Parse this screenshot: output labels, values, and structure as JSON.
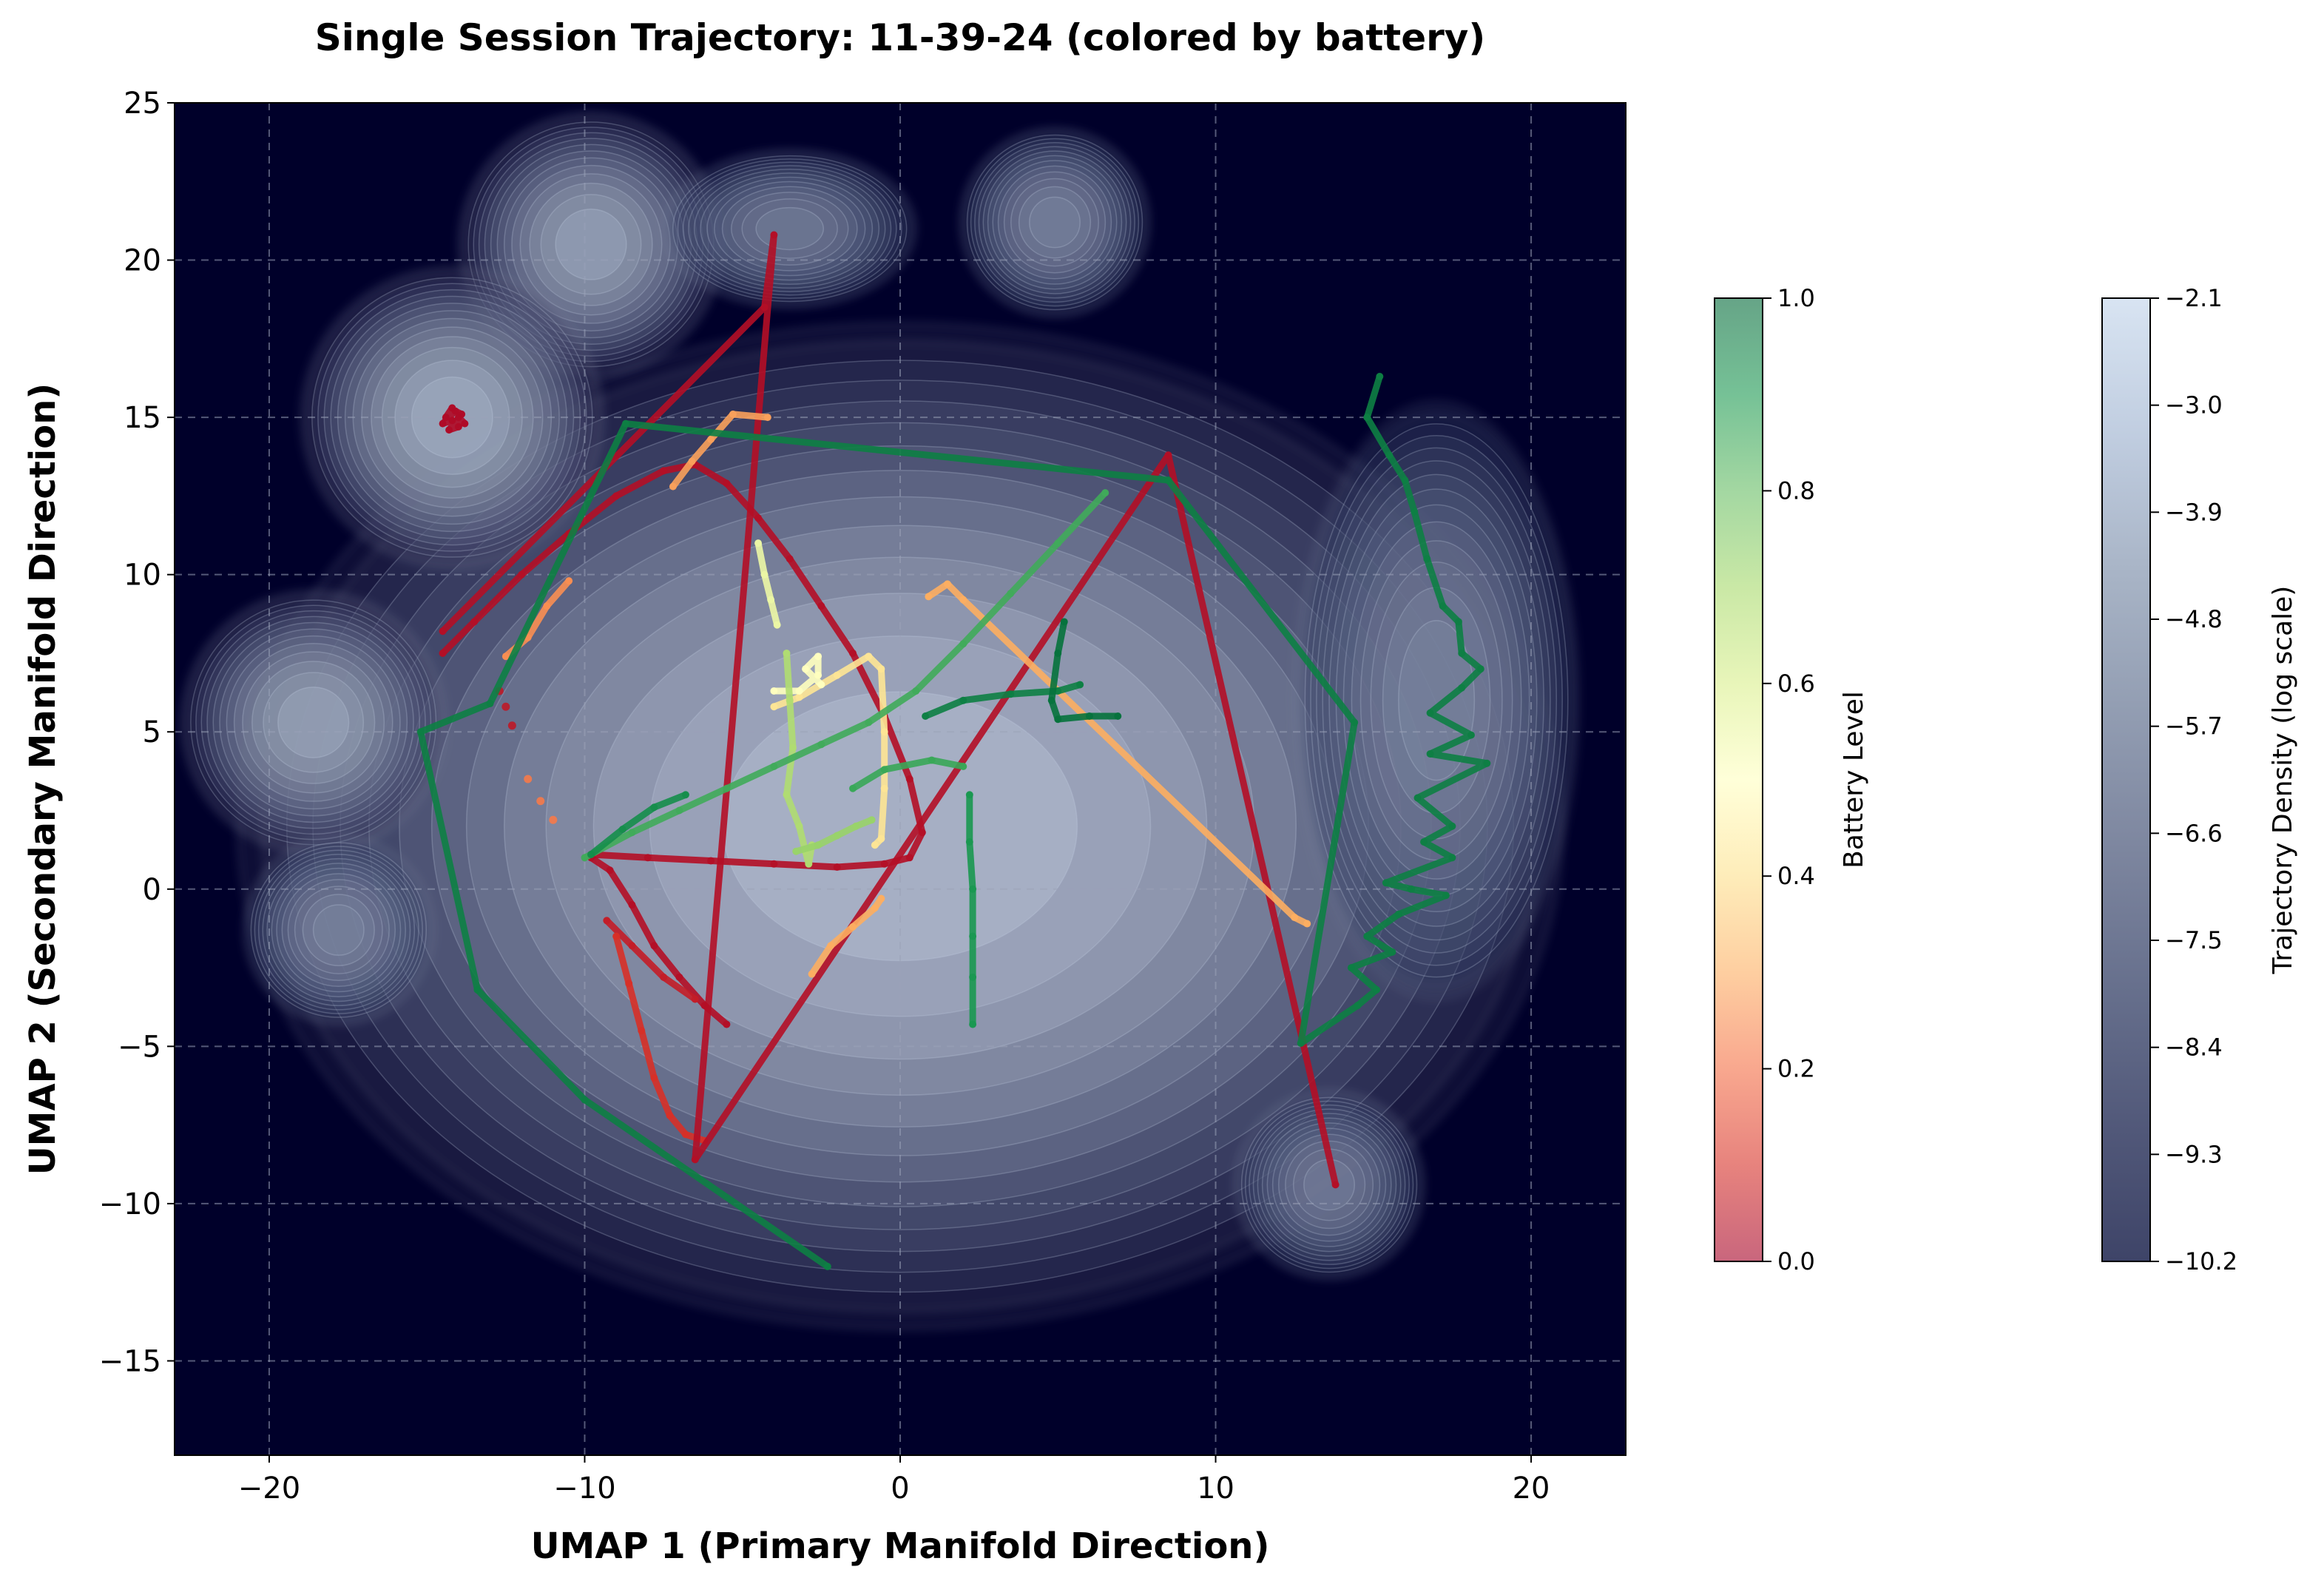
{
  "chart_data": {
    "type": "scatter",
    "title": "Single Session Trajectory: 11-39-24 (colored by battery)",
    "xlabel": "UMAP 1 (Primary Manifold Direction)",
    "ylabel": "UMAP 2 (Secondary Manifold Direction)",
    "xlim": [
      -23,
      23
    ],
    "ylim": [
      -18,
      25
    ],
    "x_ticks": [
      -20,
      -10,
      0,
      10,
      20
    ],
    "y_ticks": [
      -15,
      -10,
      -5,
      0,
      5,
      10,
      15,
      20,
      25
    ],
    "x_tick_labels": [
      "−20",
      "−10",
      "0",
      "10",
      "20"
    ],
    "y_tick_labels": [
      "−15",
      "−10",
      "−5",
      "0",
      "5",
      "10",
      "15",
      "20",
      "25"
    ],
    "grid": true,
    "background_color": "#00002a",
    "density_blobs": [
      {
        "cx": 0,
        "cy": 2,
        "rx": 21,
        "ry": 16,
        "strength": 1.0
      },
      {
        "cx": -9.8,
        "cy": 20.5,
        "rx": 4.2,
        "ry": 4.2,
        "strength": 0.85
      },
      {
        "cx": -14.2,
        "cy": 15,
        "rx": 4.8,
        "ry": 4.8,
        "strength": 0.9
      },
      {
        "cx": -18.6,
        "cy": 5.3,
        "rx": 4.2,
        "ry": 4.2,
        "strength": 0.85
      },
      {
        "cx": 4.9,
        "cy": 21.2,
        "rx": 3.0,
        "ry": 3.0,
        "strength": 0.6
      },
      {
        "cx": -3.5,
        "cy": 21.0,
        "rx": 4,
        "ry": 2.5,
        "strength": 0.55
      },
      {
        "cx": 17,
        "cy": 6,
        "rx": 4.5,
        "ry": 9.5,
        "strength": 0.6
      },
      {
        "cx": -17.8,
        "cy": -1.3,
        "rx": 3,
        "ry": 3,
        "strength": 0.6
      },
      {
        "cx": 13.6,
        "cy": -9.4,
        "rx": 3,
        "ry": 3,
        "strength": 0.55
      }
    ],
    "battery_colormap": "RdYlGn",
    "colorbars": [
      {
        "label": "Battery Level",
        "range": [
          0.0,
          1.0
        ],
        "ticks": [
          "0.0",
          "0.2",
          "0.4",
          "0.6",
          "0.8",
          "1.0"
        ],
        "colors": [
          "#a50026",
          "#d73027",
          "#f46d43",
          "#fdae61",
          "#fee08b",
          "#ffffbf",
          "#d9ef8b",
          "#a6d96a",
          "#66bd63",
          "#1a9850",
          "#006837"
        ]
      },
      {
        "label": "Trajectory Density (log scale)",
        "range": [
          -10.2,
          -2.1
        ],
        "ticks": [
          "−10.2",
          "−9.3",
          "−8.4",
          "−7.5",
          "−6.6",
          "−5.7",
          "−4.8",
          "−3.9",
          "−3.0",
          "−2.1"
        ],
        "colors": [
          "#3e4468",
          "#52597a",
          "#67708d",
          "#7d869f",
          "#929db2",
          "#a8b4c6",
          "#c0cde0",
          "#d8e4f2"
        ]
      }
    ],
    "series": [
      {
        "battery": 0.02,
        "points": [
          [
            -14.2,
            15.3
          ],
          [
            -14.4,
            15.0
          ],
          [
            -14.0,
            14.7
          ],
          [
            -14.3,
            14.6
          ],
          [
            -13.9,
            15.1
          ],
          [
            -14.1,
            15.2
          ],
          [
            -14.5,
            14.8
          ],
          [
            -14.2,
            14.9
          ],
          [
            -13.8,
            14.8
          ],
          [
            -14.0,
            15.0
          ]
        ]
      },
      {
        "battery": 0.03,
        "points": [
          [
            -14.5,
            7.5
          ],
          [
            -13.5,
            8.5
          ],
          [
            -12.0,
            10.0
          ],
          [
            -10.5,
            11.3
          ],
          [
            -9.0,
            12.5
          ],
          [
            -7.5,
            13.3
          ],
          [
            -6.5,
            13.5
          ],
          [
            -5.5,
            12.9
          ],
          [
            -4.5,
            11.8
          ],
          [
            -3.5,
            10.5
          ],
          [
            -2.5,
            9.0
          ],
          [
            -1.5,
            7.5
          ],
          [
            -0.5,
            5.5
          ],
          [
            0.3,
            3.5
          ],
          [
            0.7,
            1.8
          ],
          [
            0.3,
            1.0
          ],
          [
            -0.5,
            0.8
          ],
          [
            -2.0,
            0.7
          ],
          [
            -4.0,
            0.8
          ],
          [
            -6.0,
            0.9
          ],
          [
            -8.0,
            1.0
          ],
          [
            -9.8,
            1.1
          ]
        ]
      },
      {
        "battery": 0.03,
        "points": [
          [
            -9.8,
            1.0
          ],
          [
            -9.2,
            0.6
          ],
          [
            -8.5,
            -0.5
          ],
          [
            -7.8,
            -1.8
          ],
          [
            -7.0,
            -2.8
          ],
          [
            -6.2,
            -3.7
          ],
          [
            -5.5,
            -4.3
          ]
        ]
      },
      {
        "battery": 0.06,
        "points": [
          [
            -9.3,
            -1.0
          ],
          [
            -8.5,
            -1.8
          ],
          [
            -7.5,
            -2.8
          ],
          [
            -6.5,
            -3.5
          ]
        ]
      },
      {
        "battery": 0.05,
        "points": [
          [
            -12.7,
            6.3
          ],
          [
            -12.5,
            5.8
          ],
          [
            -12.3,
            5.2
          ]
        ]
      },
      {
        "battery": 0.1,
        "points": [
          [
            -9.0,
            -1.5
          ],
          [
            -8.6,
            -3.0
          ],
          [
            -8.2,
            -4.5
          ],
          [
            -7.8,
            -6.0
          ],
          [
            -7.3,
            -7.2
          ],
          [
            -6.8,
            -7.8
          ],
          [
            -6.2,
            -8.0
          ]
        ]
      },
      {
        "battery": 0.03,
        "points": [
          [
            -14.5,
            8.2
          ],
          [
            -4.3,
            18.5
          ],
          [
            -4.0,
            20.8
          ],
          [
            -6.5,
            -8.6
          ],
          [
            8.5,
            13.8
          ],
          [
            13.8,
            -9.4
          ]
        ]
      },
      {
        "battery": 0.22,
        "points": [
          [
            -11.8,
            3.5
          ],
          [
            -11.4,
            2.8
          ],
          [
            -11.0,
            2.2
          ]
        ]
      },
      {
        "battery": 0.25,
        "points": [
          [
            -12.5,
            7.4
          ],
          [
            -11.8,
            8.0
          ],
          [
            -11.2,
            9.0
          ],
          [
            -10.5,
            9.8
          ]
        ]
      },
      {
        "battery": 0.28,
        "points": [
          [
            -7.2,
            12.8
          ],
          [
            -6.6,
            13.6
          ],
          [
            -6.0,
            14.3
          ],
          [
            -5.3,
            15.1
          ],
          [
            -4.2,
            15.0
          ]
        ]
      },
      {
        "battery": 0.3,
        "points": [
          [
            -2.8,
            -2.7
          ],
          [
            -2.2,
            -1.8
          ],
          [
            -1.5,
            -1.2
          ],
          [
            -0.8,
            -0.6
          ],
          [
            -0.6,
            -0.3
          ]
        ]
      },
      {
        "battery": 0.3,
        "points": [
          [
            0.9,
            9.3
          ],
          [
            1.5,
            9.7
          ],
          [
            2.0,
            9.2
          ],
          [
            12.5,
            -0.9
          ],
          [
            12.9,
            -1.1
          ]
        ]
      },
      {
        "battery": 0.42,
        "points": [
          [
            -4.0,
            5.8
          ],
          [
            -3.2,
            6.1
          ],
          [
            -2.0,
            6.8
          ],
          [
            -1.0,
            7.4
          ],
          [
            -0.6,
            7.0
          ],
          [
            -0.5,
            5.0
          ],
          [
            -0.5,
            3.2
          ],
          [
            -0.6,
            1.6
          ],
          [
            -0.8,
            1.4
          ]
        ]
      },
      {
        "battery": 0.5,
        "points": [
          [
            -4.0,
            6.3
          ],
          [
            -3.2,
            6.3
          ],
          [
            -2.6,
            6.8
          ],
          [
            -2.6,
            7.4
          ],
          [
            -3.0,
            7.0
          ],
          [
            -2.5,
            6.5
          ]
        ]
      },
      {
        "battery": 0.55,
        "points": [
          [
            -4.5,
            11.0
          ],
          [
            -4.3,
            10.0
          ],
          [
            -4.1,
            9.2
          ],
          [
            -3.9,
            8.4
          ]
        ]
      },
      {
        "battery": 0.68,
        "points": [
          [
            -3.6,
            7.5
          ],
          [
            -3.5,
            6.0
          ],
          [
            -3.4,
            4.5
          ],
          [
            -3.6,
            3.0
          ],
          [
            -3.2,
            2.0
          ],
          [
            -3.0,
            1.2
          ],
          [
            -2.9,
            0.8
          ],
          [
            -2.8,
            1.4
          ]
        ]
      },
      {
        "battery": 0.72,
        "points": [
          [
            -3.3,
            1.2
          ],
          [
            -2.6,
            1.4
          ],
          [
            -2.0,
            1.7
          ],
          [
            -1.4,
            2.0
          ],
          [
            -0.9,
            2.2
          ]
        ]
      },
      {
        "battery": 0.85,
        "points": [
          [
            -10.0,
            1.0
          ],
          [
            -8.5,
            1.8
          ],
          [
            -7.0,
            2.5
          ],
          [
            -5.5,
            3.2
          ],
          [
            -4.0,
            3.9
          ],
          [
            -2.5,
            4.6
          ],
          [
            -1.0,
            5.3
          ],
          [
            0.5,
            6.3
          ],
          [
            2.0,
            7.8
          ],
          [
            3.5,
            9.4
          ],
          [
            5.0,
            11.0
          ],
          [
            6.5,
            12.6
          ]
        ]
      },
      {
        "battery": 0.92,
        "points": [
          [
            -9.8,
            1.1
          ],
          [
            -8.8,
            1.9
          ],
          [
            -7.8,
            2.6
          ],
          [
            -6.8,
            3.0
          ]
        ]
      },
      {
        "battery": 0.86,
        "points": [
          [
            -1.5,
            3.2
          ],
          [
            -0.5,
            3.8
          ],
          [
            1.0,
            4.1
          ],
          [
            2.0,
            3.9
          ]
        ]
      },
      {
        "battery": 0.95,
        "points": [
          [
            0.8,
            5.5
          ],
          [
            2.0,
            6.0
          ],
          [
            3.5,
            6.2
          ],
          [
            5.0,
            6.3
          ],
          [
            5.7,
            6.5
          ]
        ]
      },
      {
        "battery": 0.98,
        "points": [
          [
            5.2,
            8.5
          ],
          [
            5.0,
            7.5
          ],
          [
            4.8,
            6.0
          ],
          [
            5.0,
            5.4
          ],
          [
            6.0,
            5.5
          ],
          [
            6.9,
            5.5
          ]
        ]
      },
      {
        "battery": 0.9,
        "points": [
          [
            2.2,
            3.0
          ],
          [
            2.2,
            1.5
          ],
          [
            2.3,
            0.0
          ],
          [
            2.3,
            -1.5
          ],
          [
            2.3,
            -2.8
          ],
          [
            2.3,
            -4.3
          ]
        ]
      },
      {
        "battery": 0.95,
        "points": [
          [
            15.2,
            16.3
          ],
          [
            14.8,
            15.0
          ],
          [
            15.5,
            13.8
          ],
          [
            16.0,
            13.0
          ],
          [
            16.3,
            12.0
          ],
          [
            16.7,
            10.5
          ],
          [
            17.2,
            9.0
          ],
          [
            17.7,
            8.5
          ],
          [
            17.8,
            7.5
          ],
          [
            18.4,
            7.0
          ],
          [
            17.8,
            6.4
          ],
          [
            16.8,
            5.6
          ],
          [
            18.1,
            4.9
          ],
          [
            16.8,
            4.3
          ],
          [
            18.6,
            4.0
          ],
          [
            16.4,
            2.9
          ],
          [
            17.5,
            2.0
          ],
          [
            16.6,
            1.5
          ],
          [
            17.5,
            1.0
          ],
          [
            15.4,
            0.2
          ],
          [
            16.2,
            0.0
          ],
          [
            17.3,
            -0.2
          ],
          [
            15.8,
            -0.8
          ],
          [
            14.8,
            -1.5
          ],
          [
            15.6,
            -2.0
          ],
          [
            14.3,
            -2.5
          ],
          [
            15.1,
            -3.2
          ],
          [
            14.5,
            -3.7
          ],
          [
            12.7,
            -4.9
          ],
          [
            14.4,
            5.3
          ],
          [
            8.5,
            13.0
          ],
          [
            -8.7,
            14.8
          ],
          [
            -13.0,
            5.9
          ],
          [
            -15.2,
            5.0
          ],
          [
            -13.4,
            -3.2
          ],
          [
            -10.0,
            -6.7
          ],
          [
            -2.3,
            -12.0
          ]
        ]
      }
    ]
  }
}
